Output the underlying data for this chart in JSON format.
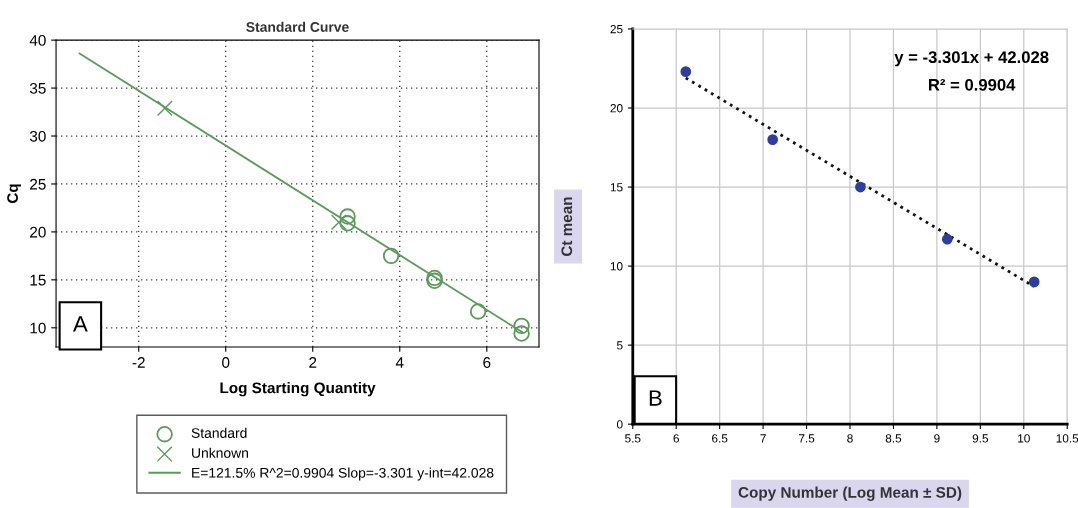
{
  "chart_data": [
    {
      "type": "scatter",
      "title": "Standard Curve",
      "xlabel": "Log Starting Quantity",
      "ylabel": "Cq",
      "xlim": [
        -3.9,
        7.2
      ],
      "xticks": [
        -2,
        0,
        2,
        4,
        6
      ],
      "ylim": [
        8,
        40
      ],
      "yticks": [
        10,
        15,
        20,
        25,
        30,
        35,
        40
      ],
      "grid": true,
      "legend": "bottom",
      "series": [
        {
          "name": "Standard",
          "marker": "circle",
          "color": "#5a9a5a",
          "x": [
            2.8,
            2.8,
            3.8,
            4.8,
            4.8,
            5.8,
            6.8,
            6.8
          ],
          "values": [
            21.6,
            20.9,
            17.5,
            15.2,
            14.9,
            11.7,
            10.2,
            9.4
          ]
        },
        {
          "name": "Unknown",
          "marker": "cross",
          "color": "#5a9a5a",
          "x": [
            -1.4,
            2.6
          ],
          "values": [
            32.9,
            21.0
          ]
        },
        {
          "name": "E=121.5% R^2=0.9904 Slop=-3.301 y-int=42.028",
          "type": "line",
          "marker": "none",
          "line_style": "solid",
          "color": "#5a9a5a",
          "x": [
            -3.36,
            6.83
          ],
          "values": [
            38.6,
            9.5
          ]
        }
      ],
      "annotations": [
        "A"
      ]
    },
    {
      "type": "scatter",
      "xlabel": "Copy Number (Log Mean ± SD)",
      "ylabel": "Ct mean",
      "xlim": [
        5.5,
        10.5
      ],
      "xticks": [
        5.5,
        6,
        6.5,
        7,
        7.5,
        8,
        8.5,
        9,
        9.5,
        10,
        10.5
      ],
      "ylim": [
        0,
        25
      ],
      "yticks": [
        0,
        5,
        10,
        15,
        20,
        25
      ],
      "grid": true,
      "series": [
        {
          "marker": "circle",
          "color": "#2e3da0",
          "x": [
            6.11,
            7.11,
            8.12,
            9.12,
            10.12
          ],
          "values": [
            22.3,
            18.0,
            15.0,
            11.7,
            9.0
          ]
        },
        {
          "type": "line",
          "marker": "none",
          "line_style": "dotted",
          "color": "#111111",
          "x": [
            6.11,
            10.12
          ],
          "values": [
            21.9,
            8.7
          ]
        }
      ],
      "annotations": [
        "y = -3.301x + 42.028",
        "R² = 0.9904",
        "B"
      ]
    }
  ]
}
